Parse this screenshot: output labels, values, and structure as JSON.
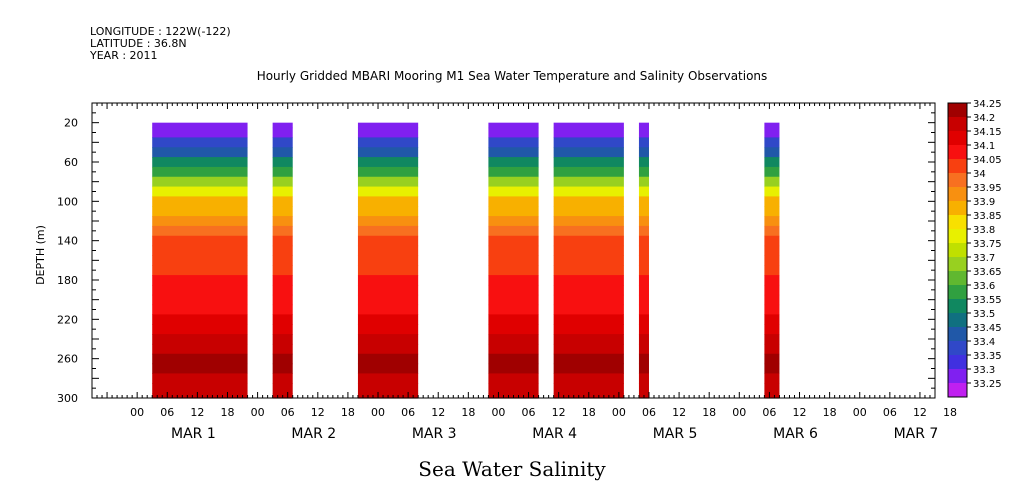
{
  "header": {
    "longitude": "LONGITUDE : 122W(-122)",
    "latitude": "LATITUDE : 36.8N",
    "year": "YEAR : 2011"
  },
  "chart_data": {
    "type": "heatmap",
    "title": "Hourly Gridded MBARI Mooring M1 Sea Water Temperature and Salinity Observations",
    "bottom_label": "Sea Water Salinity",
    "ylabel": "DEPTH (m)",
    "ylim": [
      300,
      0
    ],
    "y_ticks": [
      20,
      60,
      100,
      140,
      180,
      220,
      260,
      300
    ],
    "xlim_hours": [
      -9,
      159
    ],
    "x_hour_ticks": [
      "00",
      "06",
      "12",
      "18",
      "00",
      "06",
      "12",
      "18",
      "00",
      "06",
      "12",
      "18",
      "00",
      "06",
      "12",
      "18",
      "00",
      "06",
      "12",
      "18",
      "00",
      "06",
      "12",
      "18",
      "00",
      "06",
      "12",
      "18"
    ],
    "day_labels": [
      "MAR 1",
      "MAR 2",
      "MAR 3",
      "MAR 4",
      "MAR 5",
      "MAR 6",
      "MAR 7"
    ],
    "colorbar_levels": [
      "34.25",
      "34.2",
      "34.15",
      "34.1",
      "34.05",
      "34",
      "33.95",
      "33.9",
      "33.85",
      "33.8",
      "33.75",
      "33.7",
      "33.65",
      "33.6",
      "33.55",
      "33.5",
      "33.45",
      "33.4",
      "33.35",
      "33.3",
      "33.25"
    ],
    "colorbar_colors": [
      "#a00000",
      "#c80000",
      "#e00000",
      "#f81010",
      "#f84010",
      "#f87020",
      "#f89010",
      "#f8b000",
      "#f8e000",
      "#e8f000",
      "#c0e000",
      "#98d020",
      "#60b830",
      "#30a040",
      "#108860",
      "#107080",
      "#2058a8",
      "#3048c8",
      "#4030e0",
      "#8020f0",
      "#c020f0"
    ],
    "data_segments_hours": [
      {
        "start": 3,
        "end": 22
      },
      {
        "start": 27,
        "end": 31
      },
      {
        "start": 44,
        "end": 56
      },
      {
        "start": 70,
        "end": 80
      },
      {
        "start": 83,
        "end": 97
      },
      {
        "start": 100,
        "end": 102
      },
      {
        "start": 125,
        "end": 128
      }
    ],
    "profile_depth_m": [
      20,
      30,
      40,
      50,
      60,
      70,
      80,
      90,
      100,
      110,
      120,
      130,
      140,
      150,
      160,
      170,
      180,
      190,
      200,
      210,
      220,
      230,
      240,
      250,
      260,
      270,
      280,
      290,
      300
    ],
    "profile_salinity": [
      33.3,
      33.32,
      33.38,
      33.45,
      33.55,
      33.62,
      33.72,
      33.8,
      33.88,
      33.92,
      33.95,
      34.0,
      34.04,
      34.06,
      34.06,
      34.07,
      34.08,
      34.1,
      34.11,
      34.12,
      34.14,
      34.17,
      34.19,
      34.22,
      34.24,
      34.23,
      34.2,
      34.2,
      34.2
    ]
  }
}
